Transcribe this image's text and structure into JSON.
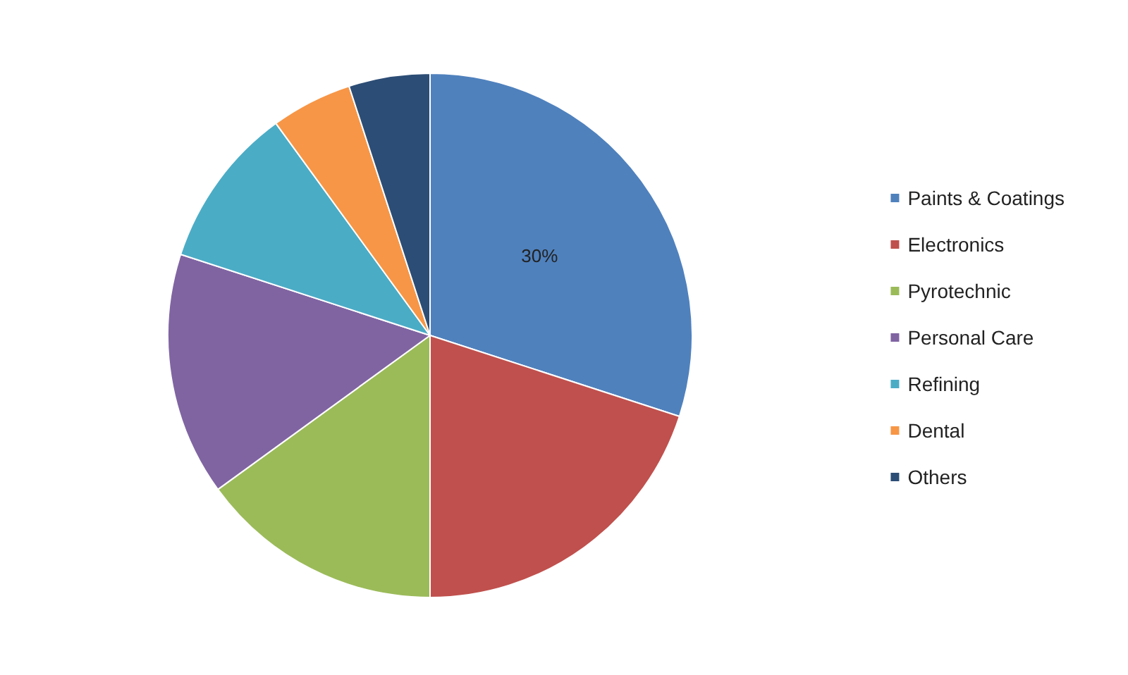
{
  "chart_data": {
    "type": "pie",
    "categories": [
      "Paints & Coatings",
      "Electronics",
      "Pyrotechnic",
      "Personal Care",
      "Refining",
      "Dental",
      "Others"
    ],
    "values": [
      30,
      20,
      15,
      15,
      10,
      5,
      5
    ],
    "colors": [
      "#4f81bd",
      "#c0504d",
      "#9bbb59",
      "#8064a2",
      "#4bacc6",
      "#f79646",
      "#2c4d75"
    ],
    "value_labels": [
      "30%",
      null,
      null,
      null,
      null,
      null,
      null
    ],
    "legend": "right"
  }
}
